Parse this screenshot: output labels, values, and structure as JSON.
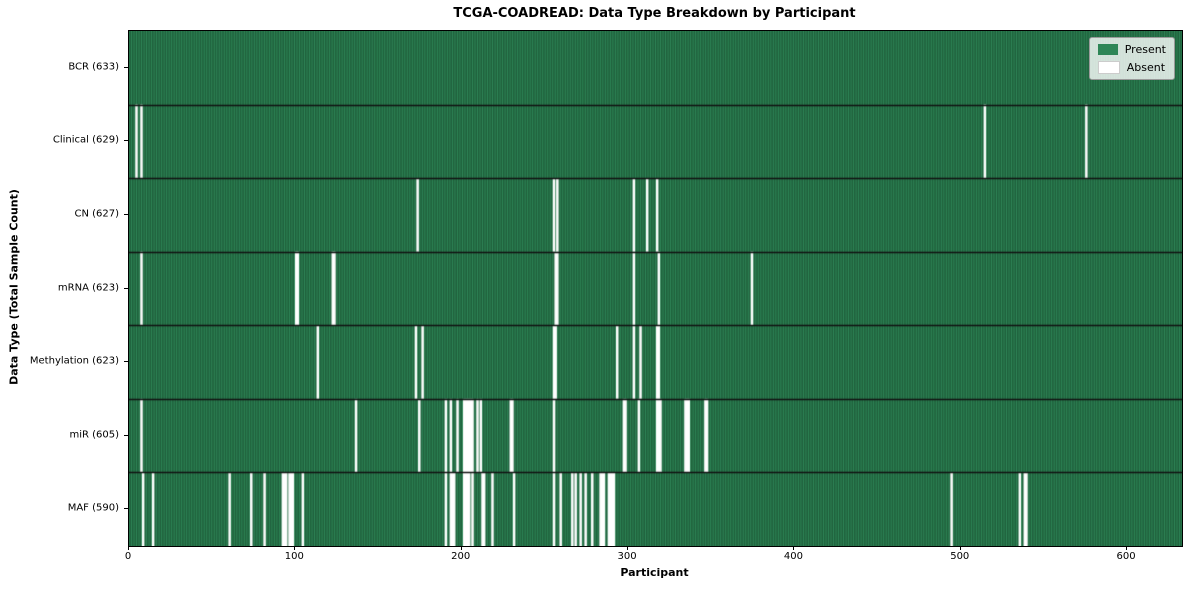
{
  "chart_data": {
    "type": "heatmap",
    "title": "TCGA-COADREAD: Data Type Breakdown by Participant",
    "xlabel": "Participant",
    "ylabel": "Data Type (Total Sample Count)",
    "xlim": [
      0,
      633
    ],
    "x_ticks": [
      0,
      100,
      200,
      300,
      400,
      500,
      600
    ],
    "grid": false,
    "total_participants": 633,
    "value_encoding": "each vertical stripe = one participant; green = data present, white = data absent",
    "legend_position": "upper right",
    "legend": [
      {
        "label": "Present",
        "color": "#2e8657"
      },
      {
        "label": "Absent",
        "color": "#ffffff"
      }
    ],
    "colors": {
      "present": "#2e8657",
      "present_edge": "#17482b",
      "absent": "#ffffff",
      "row_divider": "#111111",
      "axis": "#000000"
    },
    "rows": [
      {
        "label": "BCR (633)",
        "data_type": "BCR",
        "present_count": 633,
        "absent_participants": []
      },
      {
        "label": "Clinical (629)",
        "data_type": "Clinical",
        "present_count": 629,
        "absent_participants": [
          4,
          7,
          514,
          575
        ]
      },
      {
        "label": "CN (627)",
        "data_type": "CN",
        "present_count": 627,
        "absent_participants": [
          173,
          255,
          257,
          303,
          311,
          317
        ]
      },
      {
        "label": "mRNA (623)",
        "data_type": "mRNA",
        "present_count": 623,
        "absent_participants": [
          7,
          100,
          101,
          122,
          123,
          256,
          257,
          303,
          318,
          374
        ]
      },
      {
        "label": "Methylation (623)",
        "data_type": "Methylation",
        "present_count": 623,
        "absent_participants": [
          113,
          172,
          176,
          255,
          256,
          293,
          303,
          307,
          317,
          318
        ]
      },
      {
        "label": "miR (605)",
        "data_type": "miR",
        "present_count": 605,
        "absent_participants": [
          7,
          136,
          174,
          190,
          193,
          197,
          201,
          202,
          203,
          204,
          205,
          206,
          209,
          211,
          229,
          230,
          255,
          297,
          298,
          306,
          317,
          318,
          319,
          334,
          335,
          336,
          346,
          347
        ]
      },
      {
        "label": "MAF (590)",
        "data_type": "MAF",
        "present_count": 590,
        "absent_participants": [
          8,
          14,
          60,
          73,
          81,
          92,
          93,
          94,
          96,
          97,
          98,
          104,
          190,
          193,
          194,
          195,
          201,
          202,
          203,
          204,
          206,
          212,
          213,
          218,
          231,
          255,
          259,
          266,
          268,
          271,
          274,
          278,
          283,
          284,
          285,
          288,
          289,
          290,
          291,
          494,
          535,
          538,
          539
        ]
      }
    ]
  }
}
